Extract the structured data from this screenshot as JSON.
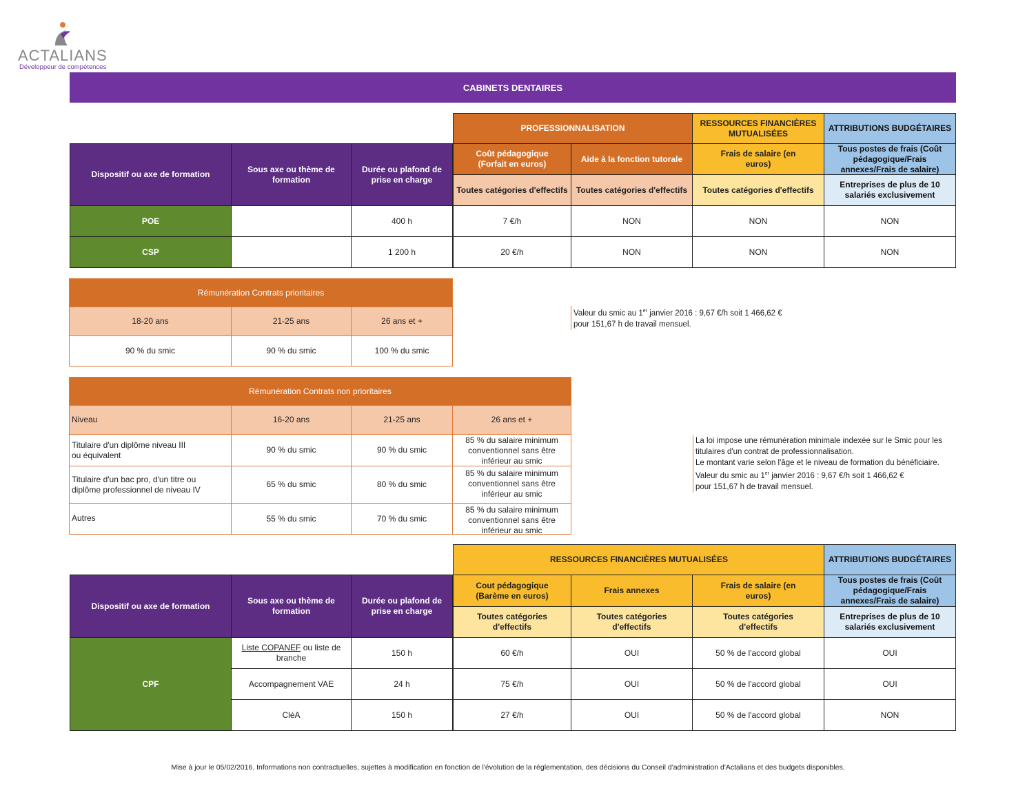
{
  "logo": {
    "brand": "ACTALIANS",
    "tagline": "Développeur de compétences",
    "brand_color": "#7033a0"
  },
  "banner": {
    "title": "CABINETS DENTAIRES"
  },
  "table1": {
    "group_headers": {
      "pro": "PROFESSIONNALISATION",
      "mut": "RESSOURCES FINANCIÈRES MUTUALISÉES",
      "budget": "ATTRIBUTIONS BUDGÉTAIRES"
    },
    "left_headers": {
      "dispositif": "Dispositif ou axe de formation",
      "sous_axe": "Sous axe ou thème de formation",
      "duree": "Durée ou plafond de prise en charge"
    },
    "sub_headers": {
      "cout": "Coût pédagogique (Forfait en euros)",
      "aide": "Aide à la fonction tutorale",
      "frais": "Frais de salaire (en euros)",
      "tous": "Tous postes de frais (Coût pédagogique/Frais annexes/Frais de salaire)"
    },
    "scope": {
      "cout": "Toutes catégories d'effectifs",
      "aide": "Toutes catégories d'effectifs",
      "frais": "Toutes catégories d'effectifs",
      "tous": "Entreprises de plus de 10 salariés exclusivement"
    },
    "rows": [
      {
        "dispositif": "POE",
        "sous_axe": "",
        "duree": "400 h",
        "cout": "7 €/h",
        "aide": "NON",
        "frais": "NON",
        "tous": "NON"
      },
      {
        "dispositif": "CSP",
        "sous_axe": "",
        "duree": "1 200 h",
        "cout": "20 €/h",
        "aide": "NON",
        "frais": "NON",
        "tous": "NON"
      }
    ]
  },
  "remu_prio": {
    "title": "Rémunération Contrats prioritaires",
    "headers": [
      "18-20 ans",
      "21-25 ans",
      "26 ans et +"
    ],
    "values": [
      "90 % du smic",
      "90 % du smic",
      "100 % du smic"
    ]
  },
  "note1": {
    "line1a": "Valeur du smic au 1",
    "sup": "er",
    "line1b": " janvier 2016 : 9,67 €/h soit 1 466,62 €",
    "line2": "pour 151,67 h de travail mensuel."
  },
  "remu_nonprio": {
    "title": "Rémunération Contrats non prioritaires",
    "headers": [
      "Niveau",
      "16-20 ans",
      "21-25 ans",
      "26 ans et +"
    ],
    "rows": [
      [
        "Titulaire d'un diplôme niveau III ou équivalent",
        "90 % du smic",
        "90 % du smic",
        "85 % du salaire minimum conventionnel sans être inférieur au smic"
      ],
      [
        "Titulaire d'un bac pro, d'un titre ou diplôme professionnel de niveau IV",
        "65 % du smic",
        "80 % du smic",
        "85 % du salaire minimum conventionnel sans être inférieur au smic"
      ],
      [
        "Autres",
        "55 % du smic",
        "70 % du smic",
        "85 % du salaire minimum conventionnel sans être inférieur au smic"
      ]
    ]
  },
  "note2": {
    "p1": "La loi impose une rémunération minimale indexée sur le Smic pour les titulaires d'un contrat de professionnalisation.",
    "p2": "Le montant varie selon l'âge et le niveau de formation du bénéficiaire.",
    "line1a": "Valeur du smic au 1",
    "sup": "er",
    "line1b": " janvier 2016 : 9,67 €/h soit 1 466,62 €",
    "line2": "pour 151,67 h de travail mensuel."
  },
  "table2": {
    "group_headers": {
      "mut": "RESSOURCES FINANCIÈRES MUTUALISÉES",
      "budget": "ATTRIBUTIONS BUDGÉTAIRES"
    },
    "left_headers": {
      "dispositif": "Dispositif ou axe de formation",
      "sous_axe": "Sous axe ou thème de formation",
      "duree": "Durée ou plafond de prise en charge"
    },
    "sub_headers": {
      "cout": "Cout pédagogique (Barème en euros)",
      "annexes": "Frais annexes",
      "frais": "Frais de salaire (en euros)",
      "tous": "Tous postes de frais (Coût pédagogique/Frais annexes/Frais de salaire)"
    },
    "scope": {
      "cout": "Toutes catégories d'effectifs",
      "annexes": "Toutes catégories d'effectifs",
      "frais": "Toutes catégories d'effectifs",
      "tous": "Entreprises de plus de 10 salariés exclusivement"
    },
    "dispositif": "CPF",
    "rows": [
      {
        "sous_axe_link": "Liste COPANEF",
        "sous_axe_rest": " ou liste de branche",
        "duree": "150 h",
        "cout": "60 €/h",
        "annexes": "OUI",
        "frais": "50 % de l'accord global",
        "tous": "OUI"
      },
      {
        "sous_axe": "Accompagnement VAE",
        "duree": "24 h",
        "cout": "75 €/h",
        "annexes": "OUI",
        "frais": "50 % de l'accord global",
        "tous": "OUI"
      },
      {
        "sous_axe": "CléA",
        "duree": "150 h",
        "cout": "27 €/h",
        "annexes": "OUI",
        "frais": "50 % de l'accord global",
        "tous": "NON"
      }
    ]
  },
  "footer": {
    "text": "Mise à jour le 05/02/2016. Informations non contractuelles, sujettes à modification en fonction de l'évolution de la réglementation, des décisions du Conseil d'administration d'Actalians et des budgets disponibles."
  }
}
